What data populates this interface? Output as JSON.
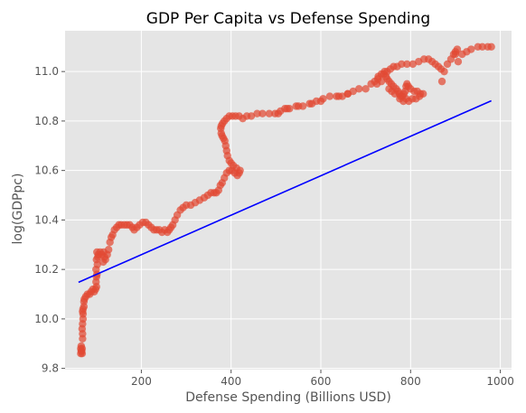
{
  "chart_data": {
    "type": "scatter",
    "title": "GDP Per Capita vs Defense Spending",
    "xlabel": "Defense Spending (Billions USD)",
    "ylabel": "log(GDPpc)",
    "xlim": [
      30,
      1025
    ],
    "ylim": [
      9.795,
      11.165
    ],
    "xticks": [
      200,
      400,
      600,
      800,
      1000
    ],
    "yticks": [
      9.8,
      10.0,
      10.2,
      10.4,
      10.6,
      10.8,
      11.0
    ],
    "ytick_labels": [
      "9.8",
      "10.0",
      "10.2",
      "10.4",
      "10.6",
      "10.8",
      "11.0"
    ],
    "grid": true,
    "style": "ggplot",
    "colors": {
      "points": "#E24A33",
      "fit_line": "#0000FF",
      "background": "#E5E5E5",
      "grid": "#FFFFFF"
    },
    "series": [
      {
        "kind": "scatter",
        "points": [
          [
            65,
            9.86
          ],
          [
            66,
            9.87
          ],
          [
            65,
            9.88
          ],
          [
            66,
            9.89
          ],
          [
            68,
            9.88
          ],
          [
            67,
            9.87
          ],
          [
            68,
            9.86
          ],
          [
            69,
            9.92
          ],
          [
            69,
            9.94
          ],
          [
            68,
            9.96
          ],
          [
            69,
            9.98
          ],
          [
            70,
            10.0
          ],
          [
            70,
            10.02
          ],
          [
            69,
            10.03
          ],
          [
            70,
            10.04
          ],
          [
            72,
            10.05
          ],
          [
            72,
            10.07
          ],
          [
            73,
            10.08
          ],
          [
            76,
            10.09
          ],
          [
            80,
            10.1
          ],
          [
            85,
            10.1
          ],
          [
            88,
            10.11
          ],
          [
            92,
            10.12
          ],
          [
            95,
            10.11
          ],
          [
            98,
            10.12
          ],
          [
            100,
            10.13
          ],
          [
            99,
            10.15
          ],
          [
            100,
            10.17
          ],
          [
            101,
            10.18
          ],
          [
            99,
            10.2
          ],
          [
            102,
            10.22
          ],
          [
            100,
            10.24
          ],
          [
            103,
            10.25
          ],
          [
            101,
            10.27
          ],
          [
            104,
            10.26
          ],
          [
            108,
            10.27
          ],
          [
            112,
            10.26
          ],
          [
            116,
            10.27
          ],
          [
            118,
            10.25
          ],
          [
            115,
            10.23
          ],
          [
            120,
            10.24
          ],
          [
            124,
            10.26
          ],
          [
            127,
            10.28
          ],
          [
            130,
            10.31
          ],
          [
            133,
            10.33
          ],
          [
            136,
            10.34
          ],
          [
            140,
            10.36
          ],
          [
            145,
            10.37
          ],
          [
            150,
            10.38
          ],
          [
            155,
            10.38
          ],
          [
            162,
            10.38
          ],
          [
            168,
            10.38
          ],
          [
            174,
            10.38
          ],
          [
            180,
            10.37
          ],
          [
            184,
            10.36
          ],
          [
            190,
            10.37
          ],
          [
            196,
            10.38
          ],
          [
            203,
            10.39
          ],
          [
            210,
            10.39
          ],
          [
            216,
            10.38
          ],
          [
            222,
            10.37
          ],
          [
            228,
            10.36
          ],
          [
            234,
            10.36
          ],
          [
            240,
            10.36
          ],
          [
            246,
            10.35
          ],
          [
            252,
            10.36
          ],
          [
            258,
            10.35
          ],
          [
            262,
            10.36
          ],
          [
            266,
            10.37
          ],
          [
            270,
            10.38
          ],
          [
            275,
            10.4
          ],
          [
            280,
            10.42
          ],
          [
            287,
            10.44
          ],
          [
            293,
            10.45
          ],
          [
            300,
            10.46
          ],
          [
            310,
            10.46
          ],
          [
            320,
            10.47
          ],
          [
            330,
            10.48
          ],
          [
            340,
            10.49
          ],
          [
            348,
            10.5
          ],
          [
            355,
            10.51
          ],
          [
            362,
            10.51
          ],
          [
            367,
            10.51
          ],
          [
            372,
            10.52
          ],
          [
            376,
            10.54
          ],
          [
            380,
            10.55
          ],
          [
            385,
            10.57
          ],
          [
            390,
            10.59
          ],
          [
            396,
            10.6
          ],
          [
            402,
            10.6
          ],
          [
            408,
            10.59
          ],
          [
            414,
            10.58
          ],
          [
            418,
            10.59
          ],
          [
            420,
            10.6
          ],
          [
            412,
            10.61
          ],
          [
            405,
            10.62
          ],
          [
            400,
            10.63
          ],
          [
            396,
            10.64
          ],
          [
            392,
            10.66
          ],
          [
            390,
            10.68
          ],
          [
            388,
            10.7
          ],
          [
            386,
            10.72
          ],
          [
            383,
            10.73
          ],
          [
            380,
            10.74
          ],
          [
            378,
            10.75
          ],
          [
            377,
            10.77
          ],
          [
            378,
            10.78
          ],
          [
            381,
            10.79
          ],
          [
            385,
            10.8
          ],
          [
            390,
            10.81
          ],
          [
            396,
            10.82
          ],
          [
            403,
            10.82
          ],
          [
            410,
            10.82
          ],
          [
            418,
            10.82
          ],
          [
            426,
            10.81
          ],
          [
            435,
            10.82
          ],
          [
            445,
            10.82
          ],
          [
            458,
            10.83
          ],
          [
            470,
            10.83
          ],
          [
            485,
            10.83
          ],
          [
            498,
            10.83
          ],
          [
            510,
            10.84
          ],
          [
            520,
            10.85
          ],
          [
            530,
            10.85
          ],
          [
            545,
            10.86
          ],
          [
            560,
            10.86
          ],
          [
            575,
            10.87
          ],
          [
            590,
            10.88
          ],
          [
            605,
            10.89
          ],
          [
            620,
            10.9
          ],
          [
            635,
            10.9
          ],
          [
            648,
            10.9
          ],
          [
            660,
            10.91
          ],
          [
            672,
            10.92
          ],
          [
            685,
            10.93
          ],
          [
            700,
            10.93
          ],
          [
            712,
            10.95
          ],
          [
            720,
            10.96
          ],
          [
            728,
            10.98
          ],
          [
            735,
            10.99
          ],
          [
            742,
            11.0
          ],
          [
            748,
            11.0
          ],
          [
            755,
            11.01
          ],
          [
            762,
            11.02
          ],
          [
            770,
            11.02
          ],
          [
            780,
            11.03
          ],
          [
            792,
            11.03
          ],
          [
            805,
            11.03
          ],
          [
            818,
            11.04
          ],
          [
            830,
            11.05
          ],
          [
            840,
            11.05
          ],
          [
            848,
            11.04
          ],
          [
            855,
            11.03
          ],
          [
            862,
            11.02
          ],
          [
            868,
            11.01
          ],
          [
            875,
            11.0
          ],
          [
            882,
            11.03
          ],
          [
            890,
            11.05
          ],
          [
            896,
            11.07
          ],
          [
            900,
            11.08
          ],
          [
            904,
            11.09
          ],
          [
            900,
            11.07
          ],
          [
            906,
            11.04
          ],
          [
            915,
            11.07
          ],
          [
            925,
            11.08
          ],
          [
            935,
            11.09
          ],
          [
            950,
            11.1
          ],
          [
            960,
            11.1
          ],
          [
            972,
            11.1
          ],
          [
            980,
            11.1
          ],
          [
            740,
            10.99
          ],
          [
            745,
            10.98
          ],
          [
            748,
            10.97
          ],
          [
            752,
            10.96
          ],
          [
            757,
            10.95
          ],
          [
            762,
            10.94
          ],
          [
            768,
            10.93
          ],
          [
            772,
            10.92
          ],
          [
            775,
            10.91
          ],
          [
            778,
            10.9
          ],
          [
            782,
            10.9
          ],
          [
            785,
            10.91
          ],
          [
            788,
            10.92
          ],
          [
            790,
            10.94
          ],
          [
            792,
            10.95
          ],
          [
            795,
            10.94
          ],
          [
            800,
            10.93
          ],
          [
            808,
            10.92
          ],
          [
            815,
            10.92
          ],
          [
            822,
            10.91
          ],
          [
            828,
            10.91
          ],
          [
            820,
            10.9
          ],
          [
            812,
            10.89
          ],
          [
            804,
            10.89
          ],
          [
            796,
            10.88
          ],
          [
            790,
            10.89
          ],
          [
            784,
            10.88
          ],
          [
            776,
            10.89
          ],
          [
            765,
            10.91
          ],
          [
            758,
            10.92
          ],
          [
            752,
            10.93
          ],
          [
            735,
            10.96
          ],
          [
            727,
            10.97
          ],
          [
            870,
            10.96
          ],
          [
            725,
            10.95
          ],
          [
            660,
            10.91
          ],
          [
            640,
            10.9
          ],
          [
            600,
            10.88
          ],
          [
            580,
            10.87
          ],
          [
            550,
            10.86
          ],
          [
            525,
            10.85
          ],
          [
            505,
            10.83
          ]
        ]
      },
      {
        "kind": "line",
        "x": [
          60,
          980
        ],
        "y": [
          10.148,
          10.882
        ]
      }
    ]
  }
}
